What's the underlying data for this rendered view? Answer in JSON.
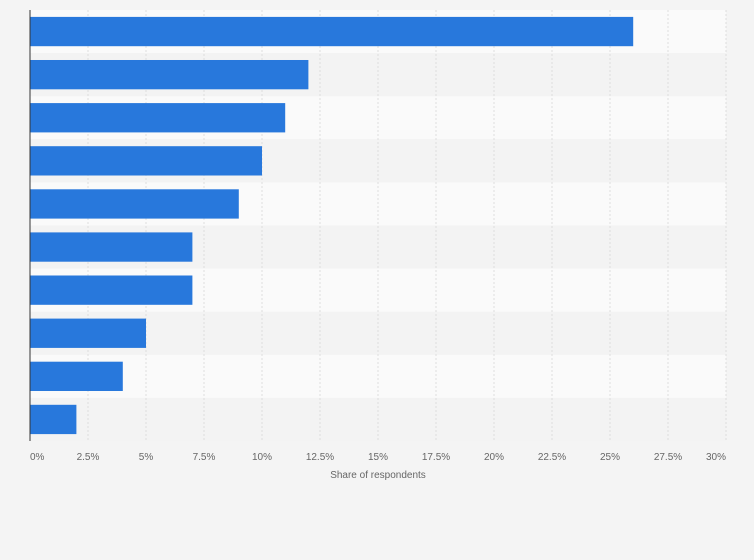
{
  "chart_data": {
    "type": "bar",
    "orientation": "horizontal",
    "title": "",
    "xlabel": "Share of respondents",
    "ylabel": "",
    "categories": [
      "",
      "",
      "",
      "",
      "",
      "",
      "",
      "",
      "",
      ""
    ],
    "values": [
      26,
      12,
      11,
      10,
      9,
      7,
      7,
      5,
      4,
      2
    ],
    "xlim": [
      0,
      30
    ],
    "ticks": [
      0,
      2.5,
      5,
      7.5,
      10,
      12.5,
      15,
      17.5,
      20,
      22.5,
      25,
      27.5,
      30
    ],
    "tick_labels": [
      "0%",
      "2.5%",
      "5%",
      "7.5%",
      "10%",
      "12.5%",
      "15%",
      "17.5%",
      "20%",
      "22.5%",
      "25%",
      "27.5%",
      "30%"
    ],
    "grid": true,
    "legend": "none"
  },
  "colors": {
    "bar": "#2878dc",
    "background": "#f4f4f4",
    "plot_band_light": "#fafafa",
    "plot_band_dark": "#f3f3f3",
    "grid": "#dddddd",
    "axis": "#333333",
    "text": "#666666"
  }
}
